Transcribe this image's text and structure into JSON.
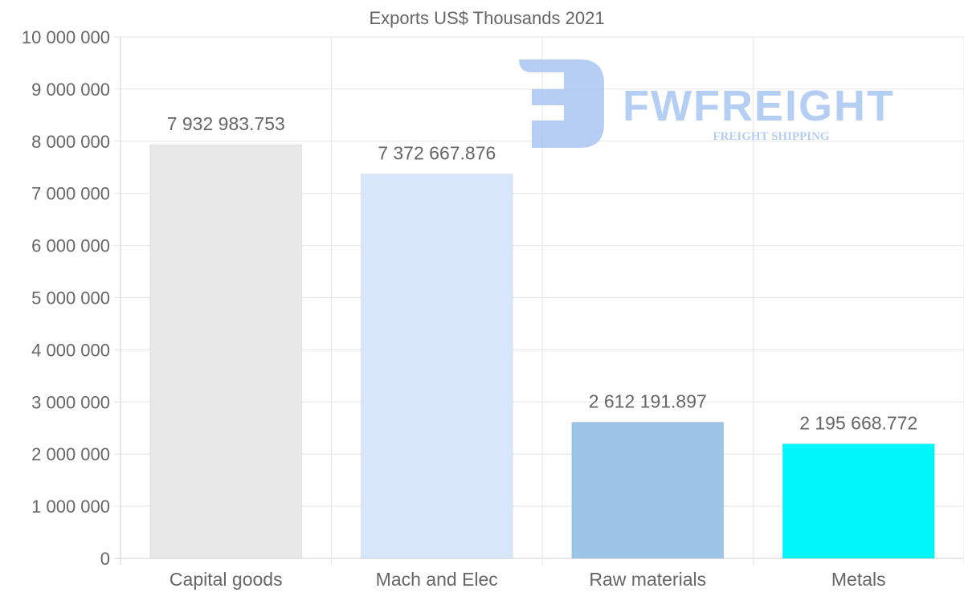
{
  "chart_data": {
    "type": "bar",
    "title": "Exports US$ Thousands 2021",
    "xlabel": "",
    "ylabel": "",
    "categories": [
      "Capital goods",
      "Mach and Elec",
      "Raw materials",
      "Metals"
    ],
    "values": [
      7932983.753,
      7372667.876,
      2612191.897,
      2195668.772
    ],
    "value_labels": [
      "7 932 983.753",
      "7 372 667.876",
      "2 612 191.897",
      "2 195 668.772"
    ],
    "colors": [
      "#e8e8e8",
      "#d7e7f9",
      "#9bc4e7",
      "#00f6f8"
    ],
    "ylim": [
      0,
      10000000
    ],
    "yticks": [
      0,
      1000000,
      2000000,
      3000000,
      4000000,
      5000000,
      6000000,
      7000000,
      8000000,
      9000000,
      10000000
    ],
    "ytick_labels": [
      "0",
      "1 000 000",
      "2 000 000",
      "3 000 000",
      "4 000 000",
      "5 000 000",
      "6 000 000",
      "7 000 000",
      "8 000 000",
      "9 000 000",
      "10 000 000"
    ],
    "grid": true,
    "legend": "none"
  },
  "watermark": {
    "brand": "FWFREIGHT",
    "tagline": "FREIGHT SHIPPING",
    "color": "#a9c6f2"
  }
}
